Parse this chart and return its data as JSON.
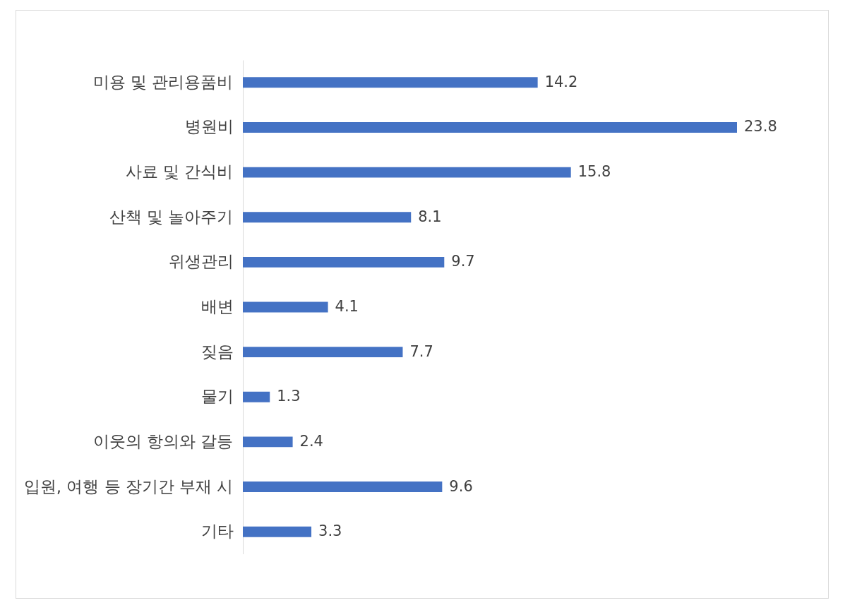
{
  "chart_data": {
    "type": "bar",
    "orientation": "horizontal",
    "categories": [
      "미용 및 관리용품비",
      "병원비",
      "사료 및 간식비",
      "산책 및 놀아주기",
      "위생관리",
      "배변",
      "짖음",
      "물기",
      "이웃의 항의와 갈등",
      "입원, 여행 등 장기간 부재 시",
      "기타"
    ],
    "values": [
      14.2,
      23.8,
      15.8,
      8.1,
      9.7,
      4.1,
      7.7,
      1.3,
      2.4,
      9.6,
      3.3
    ],
    "color": "#4472c4",
    "data_labels": true
  }
}
